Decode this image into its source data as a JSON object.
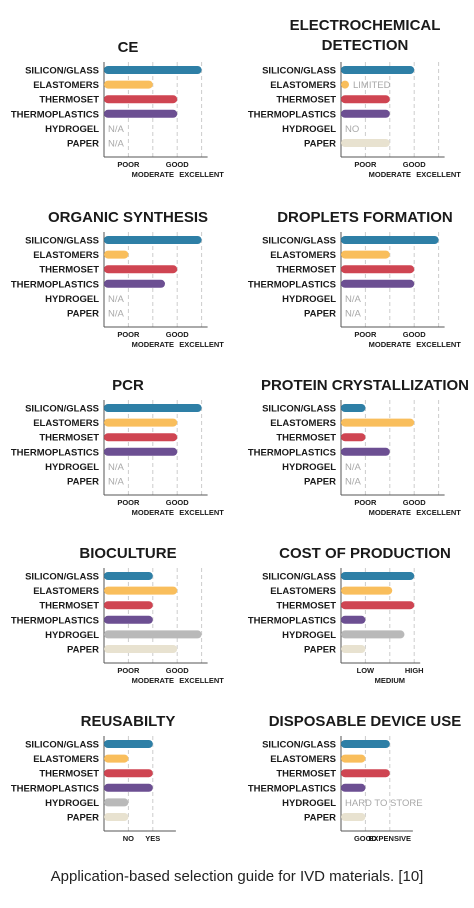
{
  "caption": "Application-based selection guide for IVD materials. [10]",
  "colors": {
    "silicon_glass": "#2e7fa6",
    "elastomers": "#f9be5c",
    "thermoset": "#cf4552",
    "thermoplastics": "#6c4f92",
    "hydrogel": "#b9b9b9",
    "paper": "#e8e2d0",
    "na_text": "#a8a8a8",
    "grid": "#cccccc"
  },
  "chart_data": [
    {
      "type": "bar",
      "orientation": "horizontal",
      "title": [
        "CE"
      ],
      "categories": [
        "SILICON/GLASS",
        "ELASTOMERS",
        "THERMOSET",
        "THERMOPLASTICS",
        "HYDROGEL",
        "PAPER"
      ],
      "values": [
        4,
        2,
        3,
        3,
        null,
        null
      ],
      "labels": [
        "",
        "",
        "",
        "",
        "N/A",
        "N/A"
      ],
      "xlim": [
        0,
        4
      ],
      "ticks": [
        {
          "v": 1,
          "text": "POOR",
          "row": 0
        },
        {
          "v": 2,
          "text": "MODERATE",
          "row": 1
        },
        {
          "v": 3,
          "text": "GOOD",
          "row": 0
        },
        {
          "v": 4,
          "text": "EXCELLENT",
          "row": 1
        }
      ],
      "grid": true
    },
    {
      "type": "bar",
      "orientation": "horizontal",
      "title": [
        "ELECTROCHEMICAL",
        "DETECTION"
      ],
      "categories": [
        "SILICON/GLASS",
        "ELASTOMERS",
        "THERMOSET",
        "THERMOPLASTICS",
        "HYDROGEL",
        "PAPER"
      ],
      "values": [
        3,
        0.15,
        2,
        2,
        null,
        2
      ],
      "labels": [
        "",
        "LIMITED",
        "",
        "",
        "NO",
        ""
      ],
      "xlim": [
        0,
        4
      ],
      "ticks": [
        {
          "v": 1,
          "text": "POOR",
          "row": 0
        },
        {
          "v": 2,
          "text": "MODERATE",
          "row": 1
        },
        {
          "v": 3,
          "text": "GOOD",
          "row": 0
        },
        {
          "v": 4,
          "text": "EXCELLENT",
          "row": 1
        }
      ],
      "grid": true
    },
    {
      "type": "bar",
      "orientation": "horizontal",
      "title": [
        "ORGANIC SYNTHESIS"
      ],
      "categories": [
        "SILICON/GLASS",
        "ELASTOMERS",
        "THERMOSET",
        "THERMOPLASTICS",
        "HYDROGEL",
        "PAPER"
      ],
      "values": [
        4,
        1,
        3,
        2.5,
        null,
        null
      ],
      "labels": [
        "",
        "",
        "",
        "",
        "N/A",
        "N/A"
      ],
      "xlim": [
        0,
        4
      ],
      "ticks": [
        {
          "v": 1,
          "text": "POOR",
          "row": 0
        },
        {
          "v": 2,
          "text": "MODERATE",
          "row": 1
        },
        {
          "v": 3,
          "text": "GOOD",
          "row": 0
        },
        {
          "v": 4,
          "text": "EXCELLENT",
          "row": 1
        }
      ],
      "grid": true
    },
    {
      "type": "bar",
      "orientation": "horizontal",
      "title": [
        "DROPLETS FORMATION"
      ],
      "categories": [
        "SILICON/GLASS",
        "ELASTOMERS",
        "THERMOSET",
        "THERMOPLASTICS",
        "HYDROGEL",
        "PAPER"
      ],
      "values": [
        4,
        2,
        3,
        3,
        null,
        null
      ],
      "labels": [
        "",
        "",
        "",
        "",
        "N/A",
        "N/A"
      ],
      "xlim": [
        0,
        4
      ],
      "ticks": [
        {
          "v": 1,
          "text": "POOR",
          "row": 0
        },
        {
          "v": 2,
          "text": "MODERATE",
          "row": 1
        },
        {
          "v": 3,
          "text": "GOOD",
          "row": 0
        },
        {
          "v": 4,
          "text": "EXCELLENT",
          "row": 1
        }
      ],
      "grid": true
    },
    {
      "type": "bar",
      "orientation": "horizontal",
      "title": [
        "PCR"
      ],
      "categories": [
        "SILICON/GLASS",
        "ELASTOMERS",
        "THERMOSET",
        "THERMOPLASTICS",
        "HYDROGEL",
        "PAPER"
      ],
      "values": [
        4,
        3,
        3,
        3,
        null,
        null
      ],
      "labels": [
        "",
        "",
        "",
        "",
        "N/A",
        "N/A"
      ],
      "xlim": [
        0,
        4
      ],
      "ticks": [
        {
          "v": 1,
          "text": "POOR",
          "row": 0
        },
        {
          "v": 2,
          "text": "MODERATE",
          "row": 1
        },
        {
          "v": 3,
          "text": "GOOD",
          "row": 0
        },
        {
          "v": 4,
          "text": "EXCELLENT",
          "row": 1
        }
      ],
      "grid": true
    },
    {
      "type": "bar",
      "orientation": "horizontal",
      "title": [
        "PROTEIN CRYSTALLIZATION"
      ],
      "categories": [
        "SILICON/GLASS",
        "ELASTOMERS",
        "THERMOSET",
        "THERMOPLASTICS",
        "HYDROGEL",
        "PAPER"
      ],
      "values": [
        1,
        3,
        1,
        2,
        null,
        null
      ],
      "labels": [
        "",
        "",
        "",
        "",
        "N/A",
        "N/A"
      ],
      "xlim": [
        0,
        4
      ],
      "ticks": [
        {
          "v": 1,
          "text": "POOR",
          "row": 0
        },
        {
          "v": 2,
          "text": "MODERATE",
          "row": 1
        },
        {
          "v": 3,
          "text": "GOOD",
          "row": 0
        },
        {
          "v": 4,
          "text": "EXCELLENT",
          "row": 1
        }
      ],
      "grid": true
    },
    {
      "type": "bar",
      "orientation": "horizontal",
      "title": [
        "BIOCULTURE"
      ],
      "categories": [
        "SILICON/GLASS",
        "ELASTOMERS",
        "THERMOSET",
        "THERMOPLASTICS",
        "HYDROGEL",
        "PAPER"
      ],
      "values": [
        2,
        3,
        2,
        2,
        4,
        3
      ],
      "labels": [
        "",
        "",
        "",
        "",
        "",
        ""
      ],
      "xlim": [
        0,
        4
      ],
      "ticks": [
        {
          "v": 1,
          "text": "POOR",
          "row": 0
        },
        {
          "v": 2,
          "text": "MODERATE",
          "row": 1
        },
        {
          "v": 3,
          "text": "GOOD",
          "row": 0
        },
        {
          "v": 4,
          "text": "EXCELLENT",
          "row": 1
        }
      ],
      "grid": true
    },
    {
      "type": "bar",
      "orientation": "horizontal",
      "title": [
        "COST OF PRODUCTION"
      ],
      "categories": [
        "SILICON/GLASS",
        "ELASTOMERS",
        "THERMOSET",
        "THERMOPLASTICS",
        "HYDROGEL",
        "PAPER"
      ],
      "values": [
        3,
        2.1,
        3,
        1,
        2.6,
        1
      ],
      "labels": [
        "",
        "",
        "",
        "",
        "",
        ""
      ],
      "xlim": [
        0,
        3
      ],
      "ticks": [
        {
          "v": 1,
          "text": "LOW",
          "row": 0
        },
        {
          "v": 2,
          "text": "MEDIUM",
          "row": 1
        },
        {
          "v": 3,
          "text": "HIGH",
          "row": 0
        }
      ],
      "grid": true
    },
    {
      "type": "bar",
      "orientation": "horizontal",
      "title": [
        "REUSABILTY"
      ],
      "categories": [
        "SILICON/GLASS",
        "ELASTOMERS",
        "THERMOSET",
        "THERMOPLASTICS",
        "HYDROGEL",
        "PAPER"
      ],
      "values": [
        2,
        1,
        2,
        2,
        1,
        1
      ],
      "labels": [
        "",
        "",
        "",
        "",
        "",
        ""
      ],
      "xlim": [
        0,
        2.7
      ],
      "ticks": [
        {
          "v": 1,
          "text": "NO",
          "row": 0
        },
        {
          "v": 2,
          "text": "YES",
          "row": 0
        }
      ],
      "grid": true
    },
    {
      "type": "bar",
      "orientation": "horizontal",
      "title": [
        "DISPOSABLE DEVICE USE"
      ],
      "categories": [
        "SILICON/GLASS",
        "ELASTOMERS",
        "THERMOSET",
        "THERMOPLASTICS",
        "HYDROGEL",
        "PAPER"
      ],
      "values": [
        2,
        1,
        2,
        1,
        null,
        1
      ],
      "labels": [
        "",
        "",
        "",
        "",
        "HARD TO STORE",
        ""
      ],
      "xlim": [
        0,
        2.7
      ],
      "ticks": [
        {
          "v": 1,
          "text": "GOOD",
          "row": 0
        },
        {
          "v": 2,
          "text": "EXPENSIVE",
          "row": 0
        }
      ],
      "grid": true
    }
  ]
}
